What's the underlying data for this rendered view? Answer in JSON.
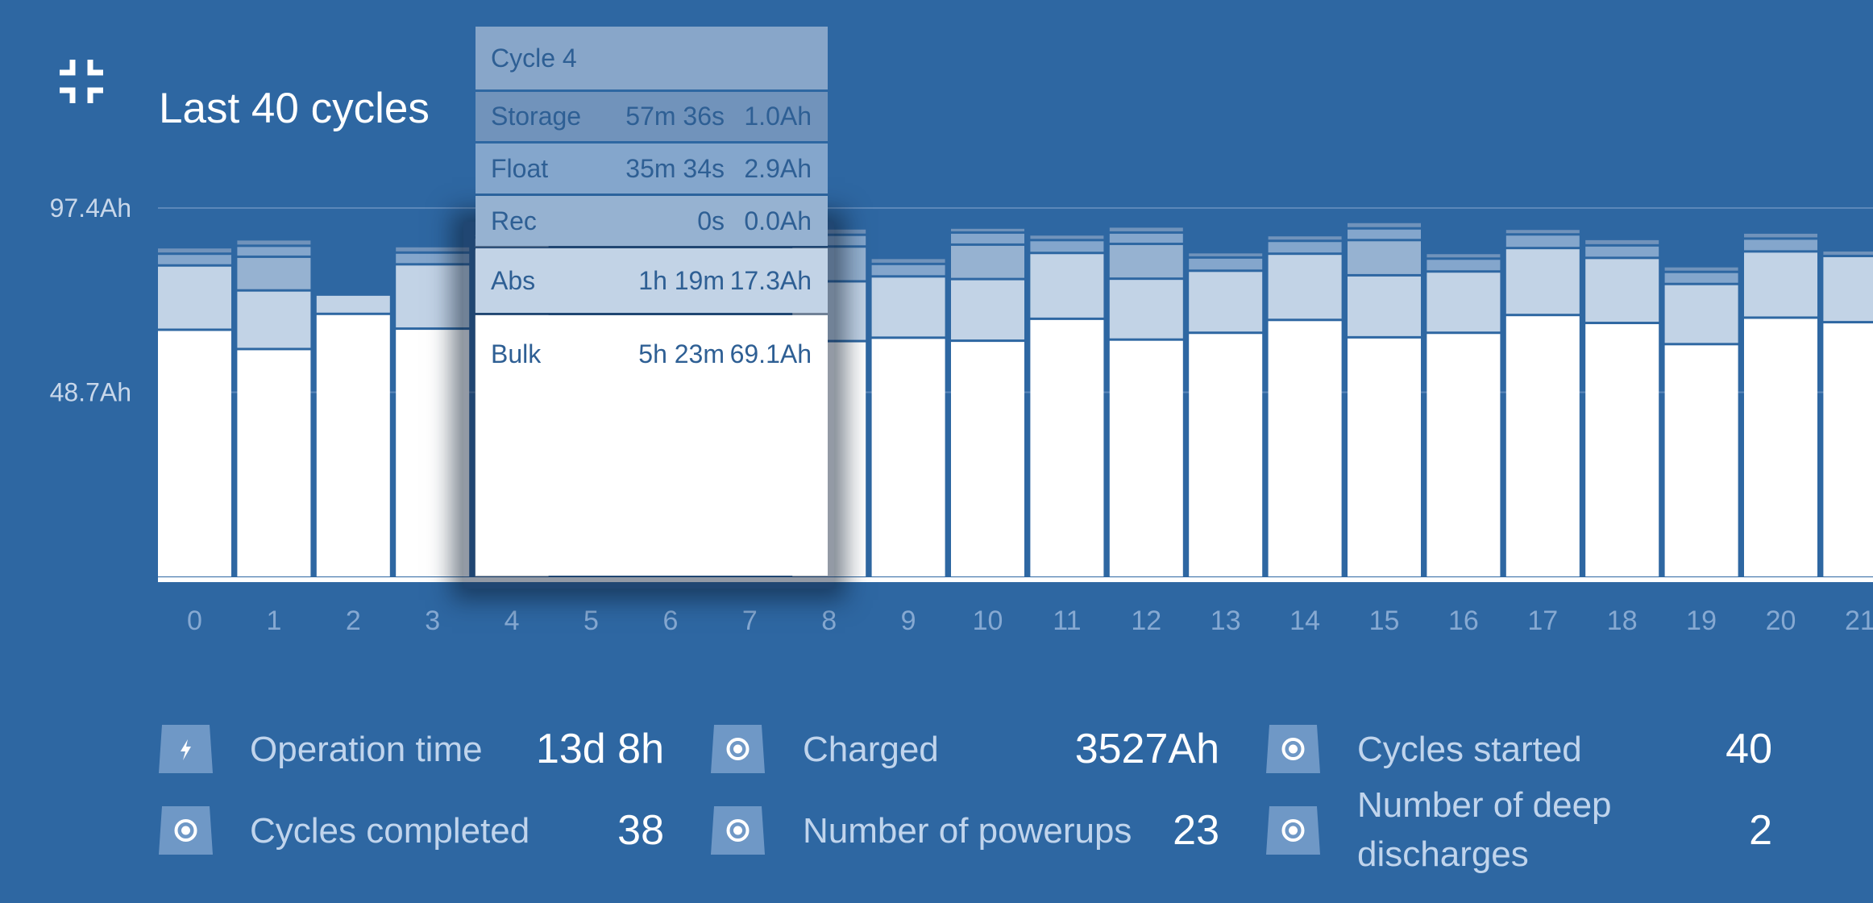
{
  "header": {
    "title": "Last 40 cycles",
    "collapse_icon": "fullscreen-exit-icon"
  },
  "colors": {
    "background": "#2e67a2",
    "bulk": "#ffffff",
    "abs": "#c2d3e6",
    "rec": "#96b2d1",
    "float": "#84a6cc",
    "storage": "#7193bb"
  },
  "chart_data": {
    "type": "bar",
    "stacked": true,
    "title": "Last 40 cycles",
    "y_ticks": [
      {
        "value": 97.4,
        "label": "97.4Ah"
      },
      {
        "value": 48.7,
        "label": "48.7Ah"
      }
    ],
    "ylim": [
      0,
      97.4
    ],
    "grid": true,
    "categories": [
      "0",
      "1",
      "2",
      "3",
      "4",
      "5",
      "6",
      "7",
      "8",
      "9",
      "10",
      "11",
      "12",
      "13",
      "14",
      "15",
      "16",
      "17",
      "18",
      "19",
      "20",
      "21"
    ],
    "series": [
      {
        "name": "Bulk",
        "values": [
          64.9,
          59.8,
          69.1,
          65.2,
          69.1,
          null,
          null,
          null,
          61.9,
          62.8,
          62.0,
          67.8,
          62.3,
          64.1,
          67.5,
          62.9,
          64.1,
          68.8,
          66.7,
          61.1,
          68.1,
          66.9
        ]
      },
      {
        "name": "Abs",
        "values": [
          17.0,
          15.5,
          5.1,
          17.0,
          17.3,
          null,
          null,
          null,
          15.8,
          16.2,
          16.3,
          17.4,
          16.1,
          16.4,
          17.5,
          16.4,
          16.2,
          17.7,
          17.2,
          15.9,
          17.5,
          17.5
        ]
      },
      {
        "name": "Rec",
        "values": [
          0,
          8.9,
          0,
          0,
          0.0,
          null,
          null,
          null,
          9.2,
          0,
          9.1,
          0,
          9.2,
          0,
          0,
          9.3,
          0,
          0,
          0,
          0,
          0,
          0
        ]
      },
      {
        "name": "Float",
        "values": [
          3.1,
          2.9,
          0,
          3.1,
          2.9,
          null,
          null,
          null,
          3.1,
          3.3,
          3.2,
          3.4,
          3.0,
          3.5,
          3.4,
          3.1,
          3.4,
          3.6,
          3.3,
          3.2,
          3.4,
          0
        ]
      },
      {
        "name": "Storage",
        "values": [
          1.7,
          1.7,
          0,
          1.7,
          1.0,
          null,
          null,
          null,
          1.7,
          1.6,
          1.3,
          1.5,
          1.6,
          1.4,
          1.5,
          1.7,
          1.5,
          1.5,
          1.7,
          1.5,
          1.6,
          1.5
        ]
      }
    ]
  },
  "tooltip": {
    "title": "Cycle 4",
    "rows": [
      {
        "label": "Storage",
        "duration": "57m 36s",
        "ah": "1.0Ah"
      },
      {
        "label": "Float",
        "duration": "35m 34s",
        "ah": "2.9Ah"
      },
      {
        "label": "Rec",
        "duration": "0s",
        "ah": "0.0Ah"
      },
      {
        "label": "Abs",
        "duration": "1h 19m",
        "ah": "17.3Ah"
      },
      {
        "label": "Bulk",
        "duration": "5h 23m",
        "ah": "69.1Ah"
      }
    ]
  },
  "stats": [
    {
      "icon": "lightning-icon",
      "label": "Operation time",
      "value": "13d 8h"
    },
    {
      "icon": "target-icon",
      "label": "Charged",
      "value": "3527Ah"
    },
    {
      "icon": "target-icon",
      "label": "Cycles started",
      "value": "40"
    },
    {
      "icon": "target-icon",
      "label": "Cycles completed",
      "value": "38"
    },
    {
      "icon": "target-icon",
      "label": "Number of powerups",
      "value": "23"
    },
    {
      "icon": "target-icon",
      "label": "Number of deep discharges",
      "value": "2"
    }
  ]
}
